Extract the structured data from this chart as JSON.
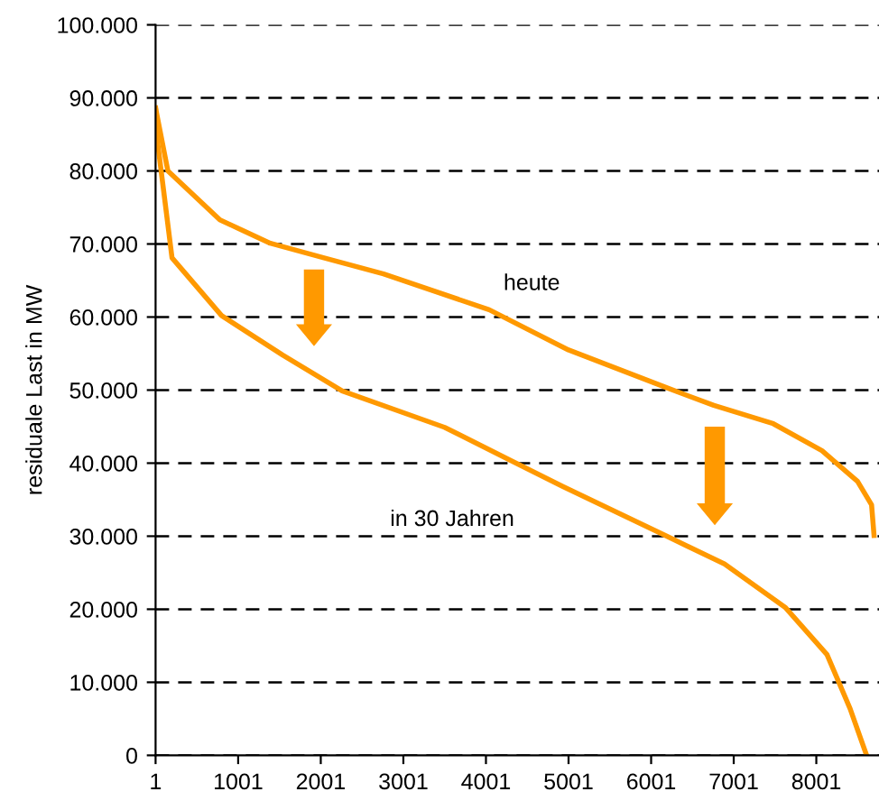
{
  "chart_data": {
    "type": "line",
    "ylabel": "residuale Last in MW",
    "xlim": [
      1,
      8760
    ],
    "xticks": [
      1,
      1001,
      2001,
      3001,
      4001,
      5001,
      6001,
      7001,
      8001
    ],
    "ylim": [
      0,
      100000
    ],
    "yticks": [
      {
        "value": 0,
        "label": "0"
      },
      {
        "value": 10000,
        "label": "10.000"
      },
      {
        "value": 20000,
        "label": "20.000"
      },
      {
        "value": 30000,
        "label": "30.000"
      },
      {
        "value": 40000,
        "label": "40.000"
      },
      {
        "value": 50000,
        "label": "50.000"
      },
      {
        "value": 60000,
        "label": "60.000"
      },
      {
        "value": 70000,
        "label": "70.000"
      },
      {
        "value": 80000,
        "label": "80.000"
      },
      {
        "value": 90000,
        "label": "90.000"
      },
      {
        "value": 100000,
        "label": "100.000"
      }
    ],
    "grid": "y",
    "line_style": "solid",
    "marker": "none",
    "series": [
      {
        "name": "heute",
        "color": "#ff9900",
        "x": [
          1,
          150,
          780,
          1390,
          2040,
          2760,
          4040,
          5000,
          6170,
          6760,
          7480,
          8070,
          8500,
          8670,
          8700
        ],
        "values": [
          88600,
          80000,
          73300,
          70100,
          68100,
          65900,
          61000,
          55500,
          50400,
          47900,
          45400,
          41700,
          37500,
          34300,
          30100
        ]
      },
      {
        "name": "in 30 Jahren",
        "color": "#ff9900",
        "x": [
          1,
          20,
          200,
          800,
          1540,
          2260,
          3500,
          4930,
          6170,
          6890,
          7630,
          8130,
          8410,
          8610
        ],
        "values": [
          88600,
          84400,
          68100,
          60200,
          54800,
          49900,
          44900,
          36800,
          30100,
          26200,
          20200,
          13800,
          6400,
          0
        ]
      }
    ]
  }
}
